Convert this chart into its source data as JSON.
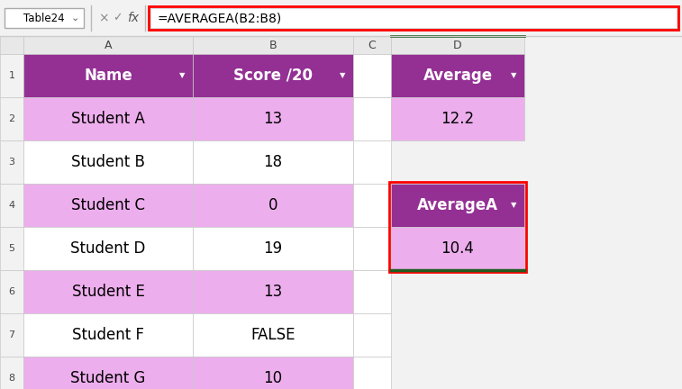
{
  "formula_bar_text": "=AVERAGEA(B2:B8)",
  "name_box": "Table24",
  "students": [
    "Student A",
    "Student B",
    "Student C",
    "Student D",
    "Student E",
    "Student F",
    "Student G"
  ],
  "scores": [
    "13",
    "18",
    "0",
    "19",
    "13",
    "FALSE",
    "10"
  ],
  "avg_header": "Average",
  "avg_value": "12.2",
  "avga_header": "AverageA",
  "avga_value": "10.4",
  "purple_header_bg": "#943094",
  "purple_alt_row": "#EDAEED",
  "white_row": "#FFFFFF",
  "light_pink_bg": "#EDAEED",
  "header_text_color": "#FFFFFF",
  "data_text_color": "#000000",
  "grid_color": "#C8C8C8",
  "formula_box_border": "#FF0000",
  "cell_selected_border": "#FF0000",
  "cell_green_border": "#1F5C1F",
  "toolbar_bg": "#F2F2F2",
  "col_header_bg": "#E8E8E8",
  "row_header_bg": "#F2F2F2",
  "fig_width": 7.57,
  "fig_height": 4.32,
  "row_alt_pattern": [
    1,
    0,
    1,
    0,
    1,
    0,
    1
  ],
  "name_col_header": "Name",
  "score_col_header": "Score /20"
}
